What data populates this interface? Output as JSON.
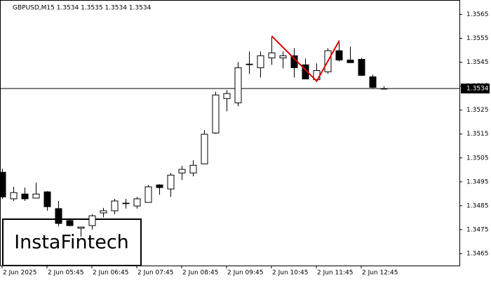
{
  "chart_data": {
    "type": "candlestick",
    "title": "GBPUSD,M15  1.3534 1.3535 1.3534 1.3534",
    "logo": "InstaFintech",
    "categories": [
      "2 Jun 2025",
      null,
      null,
      null,
      "2 Jun 05:45",
      null,
      null,
      null,
      "2 Jun 06:45",
      null,
      null,
      null,
      "2 Jun 07:45",
      null,
      null,
      null,
      "2 Jun 08:45",
      null,
      null,
      null,
      "2 Jun 09:45",
      null,
      null,
      null,
      "2 Jun 10:45",
      null,
      null,
      null,
      "2 Jun 11:45",
      null,
      null,
      null,
      "2 Jun 12:45",
      null,
      null
    ],
    "open": [
      1.3499,
      1.34879,
      1.34899,
      1.34882,
      1.34908,
      1.34838,
      1.34788,
      1.34756,
      1.34767,
      1.3482,
      1.34829,
      1.34861,
      1.34849,
      1.34864,
      1.34937,
      1.3492,
      1.34987,
      1.34987,
      1.35025,
      1.35154,
      1.35298,
      1.3528,
      1.35442,
      1.35427,
      1.35468,
      1.35468,
      1.35477,
      1.35439,
      1.35377,
      1.3541,
      1.35498,
      1.35459,
      1.35462,
      1.35389,
      1.3534
    ],
    "high": [
      1.35005,
      1.34929,
      1.34926,
      1.34946,
      1.34911,
      1.3487,
      1.34797,
      1.34761,
      1.34814,
      1.34841,
      1.34879,
      1.34879,
      1.34887,
      1.34937,
      1.3494,
      1.34987,
      1.35017,
      1.3504,
      1.35166,
      1.35327,
      1.35333,
      1.35451,
      1.35495,
      1.35495,
      1.35559,
      1.35495,
      1.35509,
      1.35465,
      1.35445,
      1.35509,
      1.35541,
      1.35515,
      1.35468,
      1.35398,
      1.3535
    ],
    "low": [
      1.34879,
      1.3487,
      1.3487,
      1.34882,
      1.34829,
      1.34764,
      1.34764,
      1.3472,
      1.3475,
      1.34802,
      1.34814,
      1.34838,
      1.34838,
      1.34864,
      1.34896,
      1.34887,
      1.34958,
      1.34973,
      1.35025,
      1.35151,
      1.35245,
      1.35266,
      1.35401,
      1.35386,
      1.35439,
      1.35424,
      1.35386,
      1.3538,
      1.35366,
      1.35401,
      1.35453,
      1.35448,
      1.35392,
      1.35339,
      1.3534
    ],
    "close": [
      1.34887,
      1.34905,
      1.34879,
      1.34899,
      1.34846,
      1.34776,
      1.34767,
      1.34761,
      1.34808,
      1.34829,
      1.3487,
      1.34861,
      1.34879,
      1.34929,
      1.34926,
      1.34978,
      1.35002,
      1.35019,
      1.35149,
      1.35313,
      1.35319,
      1.35427,
      1.35442,
      1.35477,
      1.35489,
      1.35477,
      1.35427,
      1.3538,
      1.35415,
      1.35498,
      1.35459,
      1.35448,
      1.35395,
      1.35345,
      1.3534
    ],
    "up_color": "#ffffff",
    "down_color": "#000000",
    "edge_color": "#000000",
    "bid": 1.3534,
    "bid_label": "1.3534",
    "pattern": {
      "color": "#e00000",
      "x": [
        24,
        28,
        30
      ],
      "values": [
        1.35559,
        1.35371,
        1.35539
      ]
    },
    "ylim": [
      1.346,
      1.3571
    ],
    "yticks": [
      1.3465,
      1.3475,
      1.3485,
      1.3495,
      1.3505,
      1.3515,
      1.3525,
      1.3535,
      1.3545,
      1.3555,
      1.3565
    ]
  }
}
